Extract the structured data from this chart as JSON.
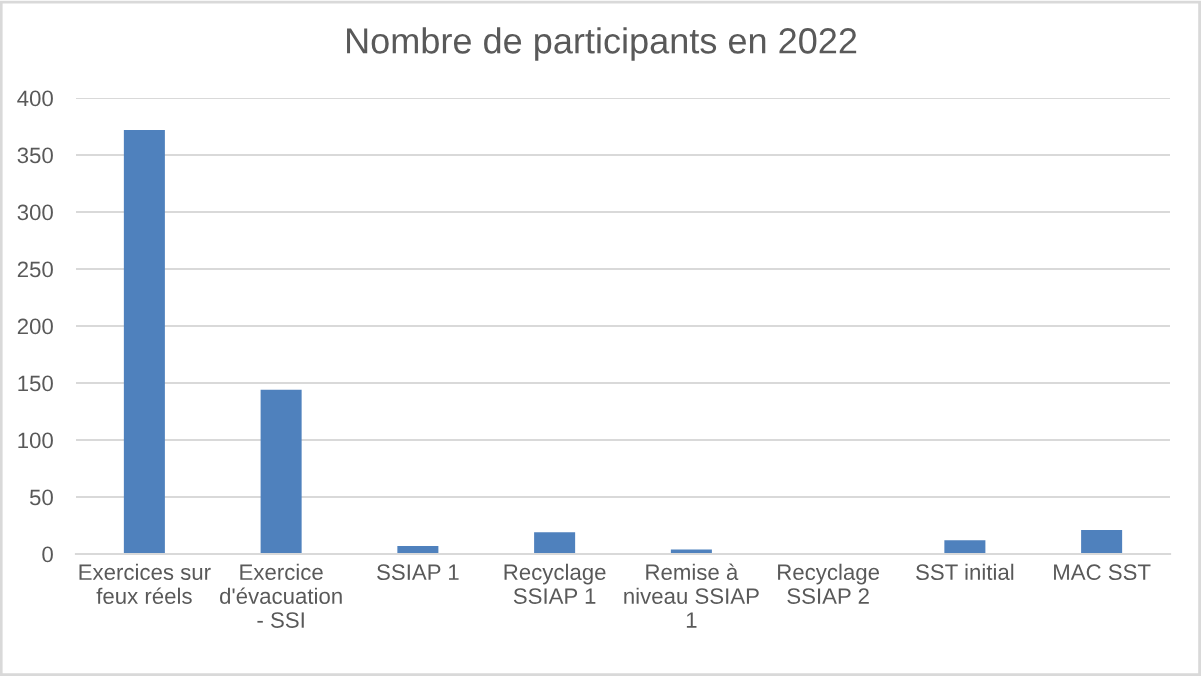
{
  "chart_data": {
    "type": "bar",
    "title": "Nombre de participants en 2022",
    "categories": [
      "Exercices sur\nfeux réels",
      "Exercice\nd'évacuation\n- SSI",
      "SSIAP 1",
      "Recyclage\nSSIAP 1",
      "Remise à\nniveau SSIAP\n1",
      "Recyclage\nSSIAP 2",
      "SST initial",
      "MAC SST"
    ],
    "values": [
      372,
      144,
      7,
      19,
      4,
      0,
      12,
      21
    ],
    "color": "#4f81bd",
    "ylim": [
      0,
      400
    ],
    "yticks": [
      0,
      50,
      100,
      150,
      200,
      250,
      300,
      350,
      400
    ],
    "grid": "y",
    "legend": false
  }
}
